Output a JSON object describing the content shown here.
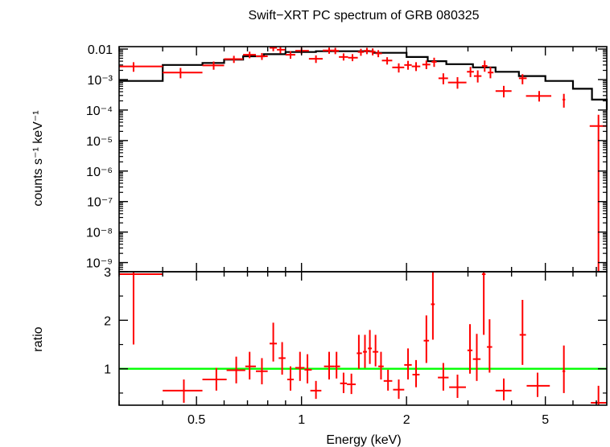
{
  "chart_data": [
    {
      "type": "scatter",
      "title": "Swift−XRT PC spectrum of GRB 080325",
      "xlabel": "",
      "ylabel": "counts s⁻¹ keV⁻¹",
      "x_scale": "log",
      "y_scale": "log",
      "xlim": [
        0.3,
        7.5
      ],
      "ylim": [
        5e-10,
        0.012
      ],
      "y_ticks": [
        {
          "value": 0.01,
          "label": "0.01"
        },
        {
          "value": 0.001,
          "label": "10⁻³"
        },
        {
          "value": 0.0001,
          "label": "10⁻⁴"
        },
        {
          "value": 1e-05,
          "label": "10⁻⁵"
        },
        {
          "value": 1e-06,
          "label": "10⁻⁶"
        },
        {
          "value": 1e-07,
          "label": "10⁻⁷"
        },
        {
          "value": 1e-08,
          "label": "10⁻⁸"
        },
        {
          "value": 1e-09,
          "label": "10⁻⁹"
        }
      ],
      "model_color": "#000000",
      "data_color": "#ff0000",
      "model": {
        "edges": [
          0.3,
          0.4,
          0.52,
          0.6,
          0.68,
          0.78,
          0.9,
          1.1,
          1.3,
          1.6,
          2.0,
          2.3,
          2.6,
          3.1,
          3.6,
          4.2,
          5.0,
          6.0,
          6.8,
          7.5
        ],
        "values": [
          0.0009,
          0.003,
          0.0035,
          0.0045,
          0.0058,
          0.0068,
          0.008,
          0.0085,
          0.0085,
          0.0075,
          0.0055,
          0.004,
          0.0032,
          0.0025,
          0.0018,
          0.0013,
          0.0009,
          0.0005,
          0.00022,
          0.0001
        ]
      },
      "points": [
        {
          "x": 0.33,
          "xlo": 0.3,
          "xhi": 0.4,
          "y": 0.0027,
          "ylo": 0.0018,
          "yhi": 0.0037
        },
        {
          "x": 0.45,
          "xlo": 0.4,
          "xhi": 0.52,
          "y": 0.0017,
          "ylo": 0.0011,
          "yhi": 0.0024
        },
        {
          "x": 0.56,
          "xlo": 0.52,
          "xhi": 0.6,
          "y": 0.0029,
          "ylo": 0.0021,
          "yhi": 0.0039
        },
        {
          "x": 0.64,
          "xlo": 0.6,
          "xhi": 0.68,
          "y": 0.0047,
          "ylo": 0.0035,
          "yhi": 0.006
        },
        {
          "x": 0.71,
          "xlo": 0.68,
          "xhi": 0.74,
          "y": 0.0065,
          "ylo": 0.005,
          "yhi": 0.0082
        },
        {
          "x": 0.77,
          "xlo": 0.74,
          "xhi": 0.8,
          "y": 0.0058,
          "ylo": 0.0044,
          "yhi": 0.0074
        },
        {
          "x": 0.83,
          "xlo": 0.81,
          "xhi": 0.85,
          "y": 0.011,
          "ylo": 0.0085,
          "yhi": 0.013
        },
        {
          "x": 0.87,
          "xlo": 0.85,
          "xhi": 0.9,
          "y": 0.0095,
          "ylo": 0.0072,
          "yhi": 0.012
        },
        {
          "x": 0.93,
          "xlo": 0.9,
          "xhi": 0.96,
          "y": 0.0065,
          "ylo": 0.0048,
          "yhi": 0.0085
        },
        {
          "x": 1.0,
          "xlo": 0.96,
          "xhi": 1.05,
          "y": 0.0088,
          "ylo": 0.0068,
          "yhi": 0.011
        },
        {
          "x": 1.1,
          "xlo": 1.05,
          "xhi": 1.15,
          "y": 0.0048,
          "ylo": 0.0035,
          "yhi": 0.0062
        },
        {
          "x": 1.2,
          "xlo": 1.15,
          "xhi": 1.25,
          "y": 0.009,
          "ylo": 0.007,
          "yhi": 0.0112
        },
        {
          "x": 1.25,
          "xlo": 1.22,
          "xhi": 1.28,
          "y": 0.0088,
          "ylo": 0.0068,
          "yhi": 0.011
        },
        {
          "x": 1.32,
          "xlo": 1.28,
          "xhi": 1.36,
          "y": 0.0055,
          "ylo": 0.0042,
          "yhi": 0.0072
        },
        {
          "x": 1.4,
          "xlo": 1.36,
          "xhi": 1.45,
          "y": 0.0052,
          "ylo": 0.004,
          "yhi": 0.0068
        },
        {
          "x": 1.48,
          "xlo": 1.45,
          "xhi": 1.51,
          "y": 0.008,
          "ylo": 0.006,
          "yhi": 0.0102
        },
        {
          "x": 1.54,
          "xlo": 1.51,
          "xhi": 1.57,
          "y": 0.0088,
          "ylo": 0.0068,
          "yhi": 0.011
        },
        {
          "x": 1.6,
          "xlo": 1.57,
          "xhi": 1.63,
          "y": 0.0082,
          "ylo": 0.0062,
          "yhi": 0.0105
        },
        {
          "x": 1.66,
          "xlo": 1.63,
          "xhi": 1.7,
          "y": 0.0072,
          "ylo": 0.0054,
          "yhi": 0.0092
        },
        {
          "x": 1.76,
          "xlo": 1.7,
          "xhi": 1.82,
          "y": 0.0042,
          "ylo": 0.0031,
          "yhi": 0.0054
        },
        {
          "x": 1.9,
          "xlo": 1.82,
          "xhi": 1.97,
          "y": 0.0025,
          "ylo": 0.0017,
          "yhi": 0.0034
        },
        {
          "x": 2.02,
          "xlo": 1.97,
          "xhi": 2.07,
          "y": 0.003,
          "ylo": 0.0021,
          "yhi": 0.0041
        },
        {
          "x": 2.13,
          "xlo": 2.07,
          "xhi": 2.19,
          "y": 0.0027,
          "ylo": 0.0019,
          "yhi": 0.0037
        },
        {
          "x": 2.28,
          "xlo": 2.22,
          "xhi": 2.34,
          "y": 0.0031,
          "ylo": 0.0022,
          "yhi": 0.0042
        },
        {
          "x": 2.4,
          "xlo": 2.36,
          "xhi": 2.44,
          "y": 0.0038,
          "ylo": 0.0026,
          "yhi": 0.0052
        },
        {
          "x": 2.55,
          "xlo": 2.47,
          "xhi": 2.63,
          "y": 0.0011,
          "ylo": 0.0007,
          "yhi": 0.0016
        },
        {
          "x": 2.8,
          "xlo": 2.63,
          "xhi": 2.97,
          "y": 0.0008,
          "ylo": 0.0005,
          "yhi": 0.0012
        },
        {
          "x": 3.05,
          "xlo": 2.98,
          "xhi": 3.12,
          "y": 0.0018,
          "ylo": 0.0012,
          "yhi": 0.0026
        },
        {
          "x": 3.2,
          "xlo": 3.12,
          "xhi": 3.28,
          "y": 0.0013,
          "ylo": 0.0008,
          "yhi": 0.002
        },
        {
          "x": 3.35,
          "xlo": 3.29,
          "xhi": 3.41,
          "y": 0.0028,
          "ylo": 0.0018,
          "yhi": 0.0042
        },
        {
          "x": 3.48,
          "xlo": 3.42,
          "xhi": 3.55,
          "y": 0.0017,
          "ylo": 0.0011,
          "yhi": 0.0026
        },
        {
          "x": 3.8,
          "xlo": 3.6,
          "xhi": 4.0,
          "y": 0.00042,
          "ylo": 0.00026,
          "yhi": 0.00062
        },
        {
          "x": 4.3,
          "xlo": 4.2,
          "xhi": 4.42,
          "y": 0.0011,
          "ylo": 0.0007,
          "yhi": 0.0015
        },
        {
          "x": 4.8,
          "xlo": 4.4,
          "xhi": 5.2,
          "y": 0.00029,
          "ylo": 0.00019,
          "yhi": 0.00042
        },
        {
          "x": 5.65,
          "xlo": 5.6,
          "xhi": 5.7,
          "y": 0.00022,
          "ylo": 0.00012,
          "yhi": 0.00034
        },
        {
          "x": 7.1,
          "xlo": 6.7,
          "xhi": 7.5,
          "y": 3e-05,
          "ylo": 5e-10,
          "yhi": 7e-05
        }
      ]
    },
    {
      "type": "scatter",
      "title": "",
      "xlabel": "Energy (keV)",
      "ylabel": "ratio",
      "x_scale": "log",
      "y_scale": "linear",
      "xlim": [
        0.3,
        7.5
      ],
      "ylim": [
        0.25,
        3.0
      ],
      "y_ticks": [
        {
          "value": 1,
          "label": "1"
        },
        {
          "value": 2,
          "label": "2"
        },
        {
          "value": 3,
          "label": "3"
        }
      ],
      "x_ticks": [
        {
          "value": 0.5,
          "label": "0.5"
        },
        {
          "value": 1,
          "label": "1"
        },
        {
          "value": 2,
          "label": "2"
        },
        {
          "value": 5,
          "label": "5"
        }
      ],
      "reference_line": 1,
      "reference_color": "#00ff00",
      "data_color": "#ff0000",
      "points": [
        {
          "x": 0.33,
          "xlo": 0.3,
          "xhi": 0.4,
          "y": 2.95,
          "ylo": 1.5,
          "yhi": 3.0
        },
        {
          "x": 0.46,
          "xlo": 0.4,
          "xhi": 0.52,
          "y": 0.55,
          "ylo": 0.3,
          "yhi": 0.78
        },
        {
          "x": 0.57,
          "xlo": 0.52,
          "xhi": 0.61,
          "y": 0.78,
          "ylo": 0.55,
          "yhi": 1.02
        },
        {
          "x": 0.65,
          "xlo": 0.61,
          "xhi": 0.69,
          "y": 0.97,
          "ylo": 0.7,
          "yhi": 1.25
        },
        {
          "x": 0.71,
          "xlo": 0.69,
          "xhi": 0.74,
          "y": 1.05,
          "ylo": 0.78,
          "yhi": 1.35
        },
        {
          "x": 0.77,
          "xlo": 0.74,
          "xhi": 0.8,
          "y": 0.95,
          "ylo": 0.68,
          "yhi": 1.22
        },
        {
          "x": 0.83,
          "xlo": 0.81,
          "xhi": 0.85,
          "y": 1.52,
          "ylo": 1.15,
          "yhi": 1.95
        },
        {
          "x": 0.88,
          "xlo": 0.86,
          "xhi": 0.9,
          "y": 1.22,
          "ylo": 0.88,
          "yhi": 1.55
        },
        {
          "x": 0.93,
          "xlo": 0.91,
          "xhi": 0.95,
          "y": 0.78,
          "ylo": 0.55,
          "yhi": 1.05
        },
        {
          "x": 0.99,
          "xlo": 0.96,
          "xhi": 1.02,
          "y": 1.02,
          "ylo": 0.75,
          "yhi": 1.35
        },
        {
          "x": 1.04,
          "xlo": 1.02,
          "xhi": 1.07,
          "y": 0.98,
          "ylo": 0.7,
          "yhi": 1.3
        },
        {
          "x": 1.1,
          "xlo": 1.06,
          "xhi": 1.14,
          "y": 0.55,
          "ylo": 0.38,
          "yhi": 0.75
        },
        {
          "x": 1.2,
          "xlo": 1.16,
          "xhi": 1.24,
          "y": 1.05,
          "ylo": 0.78,
          "yhi": 1.35
        },
        {
          "x": 1.26,
          "xlo": 1.24,
          "xhi": 1.29,
          "y": 1.05,
          "ylo": 0.8,
          "yhi": 1.35
        },
        {
          "x": 1.32,
          "xlo": 1.29,
          "xhi": 1.35,
          "y": 0.7,
          "ylo": 0.5,
          "yhi": 0.92
        },
        {
          "x": 1.39,
          "xlo": 1.35,
          "xhi": 1.43,
          "y": 0.68,
          "ylo": 0.48,
          "yhi": 0.9
        },
        {
          "x": 1.46,
          "xlo": 1.44,
          "xhi": 1.49,
          "y": 1.32,
          "ylo": 1.0,
          "yhi": 1.7
        },
        {
          "x": 1.52,
          "xlo": 1.5,
          "xhi": 1.54,
          "y": 1.35,
          "ylo": 1.02,
          "yhi": 1.7
        },
        {
          "x": 1.57,
          "xlo": 1.55,
          "xhi": 1.59,
          "y": 1.42,
          "ylo": 1.1,
          "yhi": 1.8
        },
        {
          "x": 1.63,
          "xlo": 1.6,
          "xhi": 1.66,
          "y": 1.35,
          "ylo": 1.05,
          "yhi": 1.7
        },
        {
          "x": 1.69,
          "xlo": 1.66,
          "xhi": 1.72,
          "y": 1.05,
          "ylo": 0.78,
          "yhi": 1.35
        },
        {
          "x": 1.77,
          "xlo": 1.72,
          "xhi": 1.82,
          "y": 0.75,
          "ylo": 0.55,
          "yhi": 0.98
        },
        {
          "x": 1.9,
          "xlo": 1.83,
          "xhi": 1.97,
          "y": 0.57,
          "ylo": 0.38,
          "yhi": 0.78
        },
        {
          "x": 2.02,
          "xlo": 1.97,
          "xhi": 2.07,
          "y": 1.08,
          "ylo": 0.78,
          "yhi": 1.42
        },
        {
          "x": 2.13,
          "xlo": 2.08,
          "xhi": 2.18,
          "y": 0.88,
          "ylo": 0.62,
          "yhi": 1.18
        },
        {
          "x": 2.28,
          "xlo": 2.24,
          "xhi": 2.32,
          "y": 1.58,
          "ylo": 1.12,
          "yhi": 2.1
        },
        {
          "x": 2.38,
          "xlo": 2.35,
          "xhi": 2.41,
          "y": 2.33,
          "ylo": 1.6,
          "yhi": 3.0
        },
        {
          "x": 2.55,
          "xlo": 2.46,
          "xhi": 2.64,
          "y": 0.82,
          "ylo": 0.55,
          "yhi": 1.12
        },
        {
          "x": 2.8,
          "xlo": 2.65,
          "xhi": 2.96,
          "y": 0.62,
          "ylo": 0.4,
          "yhi": 0.88
        },
        {
          "x": 3.04,
          "xlo": 2.99,
          "xhi": 3.09,
          "y": 1.38,
          "ylo": 0.9,
          "yhi": 1.92
        },
        {
          "x": 3.18,
          "xlo": 3.1,
          "xhi": 3.26,
          "y": 1.2,
          "ylo": 0.75,
          "yhi": 1.72
        },
        {
          "x": 3.33,
          "xlo": 3.29,
          "xhi": 3.37,
          "y": 2.95,
          "ylo": 1.7,
          "yhi": 3.0
        },
        {
          "x": 3.46,
          "xlo": 3.4,
          "xhi": 3.52,
          "y": 1.45,
          "ylo": 0.92,
          "yhi": 2.02
        },
        {
          "x": 3.8,
          "xlo": 3.6,
          "xhi": 4.0,
          "y": 0.55,
          "ylo": 0.35,
          "yhi": 0.8
        },
        {
          "x": 4.3,
          "xlo": 4.22,
          "xhi": 4.4,
          "y": 1.7,
          "ylo": 1.08,
          "yhi": 2.42
        },
        {
          "x": 4.75,
          "xlo": 4.42,
          "xhi": 5.15,
          "y": 0.65,
          "ylo": 0.42,
          "yhi": 0.92
        },
        {
          "x": 5.65,
          "xlo": 5.6,
          "xhi": 5.7,
          "y": 0.95,
          "ylo": 0.5,
          "yhi": 1.48
        },
        {
          "x": 7.1,
          "xlo": 6.75,
          "xhi": 7.5,
          "y": 0.3,
          "ylo": 0.25,
          "yhi": 0.65
        }
      ]
    }
  ]
}
